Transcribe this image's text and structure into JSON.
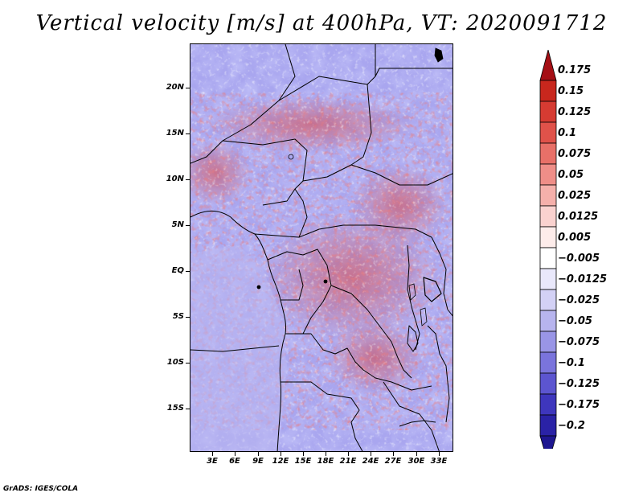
{
  "title": "Vertical velocity [m/s] at 400hPa, VT: 2020091712",
  "y_axis": {
    "labels": [
      "20N",
      "15N",
      "10N",
      "5N",
      "EQ",
      "5S",
      "10S",
      "15S"
    ]
  },
  "x_axis": {
    "labels": [
      "3E",
      "6E",
      "9E",
      "12E",
      "15E",
      "18E",
      "21E",
      "24E",
      "27E",
      "30E",
      "33E"
    ]
  },
  "colorbar": {
    "labels": [
      "0.175",
      "0.15",
      "0.125",
      "0.1",
      "0.075",
      "0.05",
      "0.025",
      "0.0125",
      "0.005",
      "−0.005",
      "−0.0125",
      "−0.025",
      "−0.05",
      "−0.075",
      "−0.1",
      "−0.125",
      "−0.175",
      "−0.2"
    ],
    "colors": [
      "#a50f15",
      "#c8271d",
      "#d63b32",
      "#e0524a",
      "#e87068",
      "#ef8e88",
      "#f5b0ab",
      "#fad2cf",
      "#fdecea",
      "#ffffff",
      "#e9e8fb",
      "#d3d1f5",
      "#b7b4ee",
      "#9995e6",
      "#7a74dc",
      "#5c55d0",
      "#3e36bd",
      "#2a22a6",
      "#1e1690"
    ]
  },
  "credit": "GrADS: IGES/COLA"
}
